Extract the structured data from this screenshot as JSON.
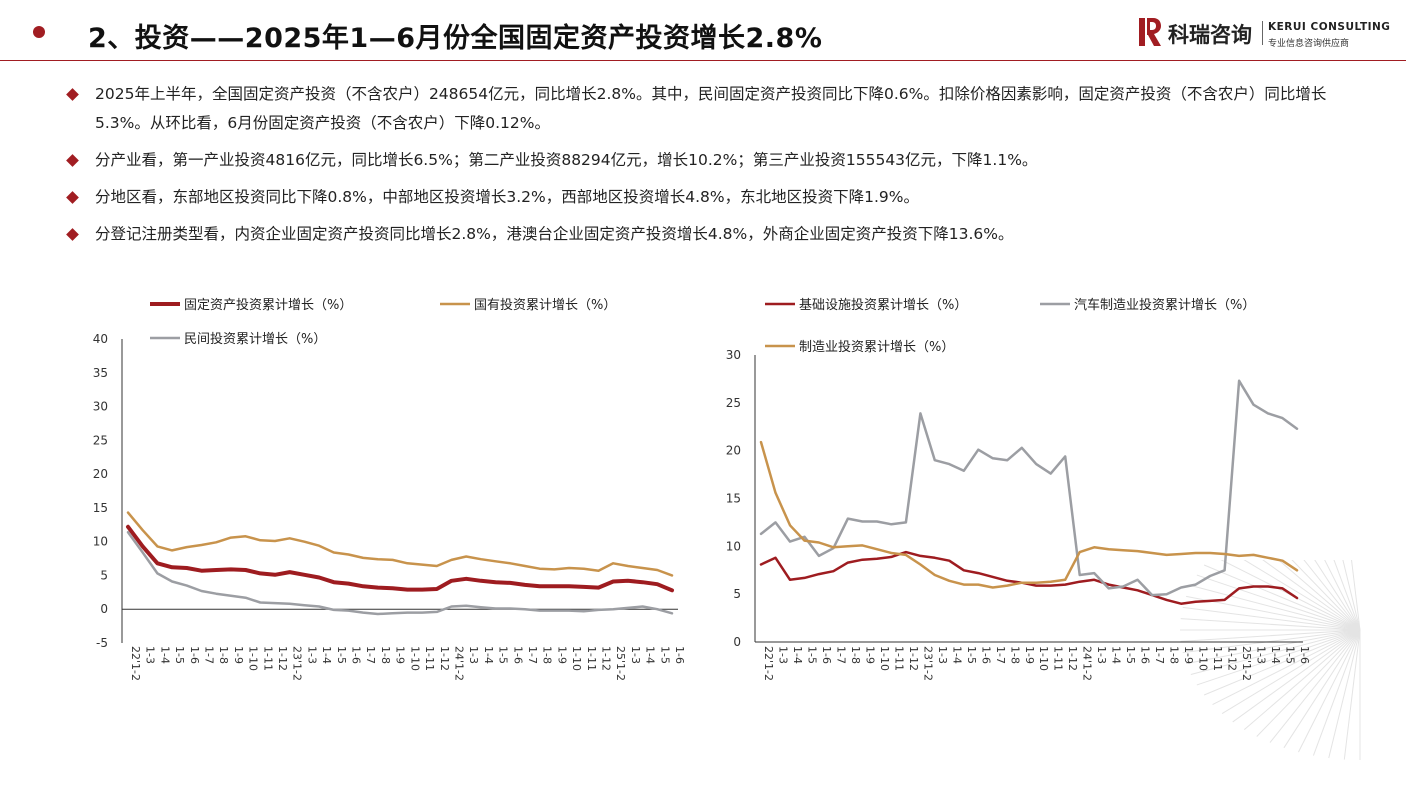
{
  "header": {
    "title": "2、投资——2025年1—6月份全国固定资产投资增长2.8%",
    "brand_cn": "科瑞咨询",
    "brand_en": "KERUI CONSULTING",
    "brand_tag": "专业信息咨询供应商",
    "accent_color": "#a11d22"
  },
  "bullets": [
    "2025年上半年，全国固定资产投资（不含农户）248654亿元，同比增长2.8%。其中，民间固定资产投资同比下降0.6%。扣除价格因素影响，固定资产投资（不含农户）同比增长5.3%。从环比看，6月份固定资产投资（不含农户）下降0.12%。",
    "分产业看，第一产业投资4816亿元，同比增长6.5%；第二产业投资88294亿元，增长10.2%；第三产业投资155543亿元，下降1.1%。",
    "分地区看，东部地区投资同比下降0.8%，中部地区投资增长3.2%，西部地区投资增长4.8%，东北地区投资下降1.9%。",
    "分登记注册类型看，内资企业固定资产投资同比增长2.8%，港澳台企业固定资产投资增长4.8%，外商企业固定资产投资下降13.6%。"
  ],
  "chart_data": [
    {
      "type": "line",
      "title": "",
      "xlabel": "",
      "ylabel": "",
      "ylim": [
        -5,
        40
      ],
      "yticks": [
        -5,
        0,
        5,
        10,
        15,
        20,
        25,
        30,
        35,
        40
      ],
      "legend": "top",
      "grid": false,
      "x": [
        "22'1-2",
        "1-3",
        "1-4",
        "1-5",
        "1-6",
        "1-7",
        "1-8",
        "1-9",
        "1-10",
        "1-11",
        "1-12",
        "23'1-2",
        "1-3",
        "1-4",
        "1-5",
        "1-6",
        "1-7",
        "1-8",
        "1-9",
        "1-10",
        "1-11",
        "1-12",
        "24'1-2",
        "1-3",
        "1-4",
        "1-5",
        "1-6",
        "1-7",
        "1-8",
        "1-9",
        "1-10",
        "1-11",
        "1-12",
        "25'1-2",
        "1-3",
        "1-4",
        "1-5",
        "1-6"
      ],
      "series": [
        {
          "name": "固定资产投资累计增长（%）",
          "color": "#9e1c20",
          "width": 4,
          "values": [
            12.2,
            9.3,
            6.8,
            6.2,
            6.1,
            5.7,
            5.8,
            5.9,
            5.8,
            5.3,
            5.1,
            5.5,
            5.1,
            4.7,
            4.0,
            3.8,
            3.4,
            3.2,
            3.1,
            2.9,
            2.9,
            3.0,
            4.2,
            4.5,
            4.2,
            4.0,
            3.9,
            3.6,
            3.4,
            3.4,
            3.4,
            3.3,
            3.2,
            4.1,
            4.2,
            4.0,
            3.7,
            2.8
          ]
        },
        {
          "name": "国有投资累计增长（%）",
          "color": "#c8934c",
          "width": 2.5,
          "values": [
            14.3,
            11.7,
            9.3,
            8.7,
            9.2,
            9.5,
            9.9,
            10.6,
            10.8,
            10.2,
            10.1,
            10.5,
            10.0,
            9.4,
            8.4,
            8.1,
            7.6,
            7.4,
            7.3,
            6.8,
            6.6,
            6.4,
            7.3,
            7.8,
            7.4,
            7.1,
            6.8,
            6.4,
            6.0,
            5.9,
            6.1,
            6.0,
            5.7,
            6.8,
            6.4,
            6.1,
            5.8,
            5.0
          ]
        },
        {
          "name": "民间投资累计增长（%）",
          "color": "#9c9ea3",
          "width": 2.5,
          "values": [
            11.4,
            8.4,
            5.3,
            4.1,
            3.5,
            2.7,
            2.3,
            2.0,
            1.7,
            1.0,
            0.9,
            0.8,
            0.6,
            0.4,
            -0.1,
            -0.2,
            -0.5,
            -0.7,
            -0.6,
            -0.5,
            -0.5,
            -0.4,
            0.4,
            0.5,
            0.3,
            0.1,
            0.1,
            0.0,
            -0.2,
            -0.2,
            -0.2,
            -0.3,
            -0.1,
            0.0,
            0.2,
            0.4,
            0.0,
            -0.6
          ]
        }
      ]
    },
    {
      "type": "line",
      "title": "",
      "xlabel": "",
      "ylabel": "",
      "ylim": [
        0,
        30
      ],
      "yticks": [
        0,
        5,
        10,
        15,
        20,
        25,
        30
      ],
      "legend": "top",
      "grid": false,
      "x": [
        "22'1-2",
        "1-3",
        "1-4",
        "1-5",
        "1-6",
        "1-7",
        "1-8",
        "1-9",
        "1-10",
        "1-11",
        "1-12",
        "23'1-2",
        "1-3",
        "1-4",
        "1-5",
        "1-6",
        "1-7",
        "1-8",
        "1-9",
        "1-10",
        "1-11",
        "1-12",
        "24'1-2",
        "1-3",
        "1-4",
        "1-5",
        "1-6",
        "1-7",
        "1-8",
        "1-9",
        "1-10",
        "1-11",
        "1-12",
        "25'1-2",
        "1-3",
        "1-4",
        "1-5",
        "1-6"
      ],
      "series": [
        {
          "name": "基础设施投资累计增长（%）",
          "color": "#9e1c20",
          "width": 2.5,
          "values": [
            8.1,
            8.8,
            6.5,
            6.7,
            7.1,
            7.4,
            8.3,
            8.6,
            8.7,
            8.9,
            9.4,
            9.0,
            8.8,
            8.5,
            7.5,
            7.2,
            6.8,
            6.4,
            6.2,
            5.9,
            5.9,
            6.0,
            6.3,
            6.5,
            6.0,
            5.7,
            5.4,
            4.9,
            4.4,
            4.0,
            4.2,
            4.3,
            4.4,
            5.6,
            5.8,
            5.8,
            5.6,
            4.6
          ]
        },
        {
          "name": "汽车制造业投资累计增长（%）",
          "color": "#9c9ea3",
          "width": 2.5,
          "values": [
            11.3,
            12.5,
            10.5,
            11.0,
            9.0,
            9.8,
            12.9,
            12.6,
            12.6,
            12.3,
            12.5,
            23.9,
            19.0,
            18.6,
            17.9,
            20.1,
            19.2,
            19.0,
            20.3,
            18.6,
            17.6,
            19.4,
            7.0,
            7.2,
            5.6,
            5.8,
            6.5,
            4.9,
            5.0,
            5.7,
            6.0,
            6.9,
            7.5,
            27.3,
            24.8,
            23.9,
            23.4,
            22.3
          ]
        },
        {
          "name": "制造业投资累计增长（%）",
          "color": "#c8934c",
          "width": 2.5,
          "values": [
            20.9,
            15.6,
            12.2,
            10.6,
            10.4,
            9.9,
            10.0,
            10.1,
            9.7,
            9.3,
            9.1,
            8.1,
            7.0,
            6.4,
            6.0,
            6.0,
            5.7,
            5.9,
            6.2,
            6.2,
            6.3,
            6.5,
            9.4,
            9.9,
            9.7,
            9.6,
            9.5,
            9.3,
            9.1,
            9.2,
            9.3,
            9.3,
            9.2,
            9.0,
            9.1,
            8.8,
            8.5,
            7.5
          ]
        }
      ]
    }
  ]
}
